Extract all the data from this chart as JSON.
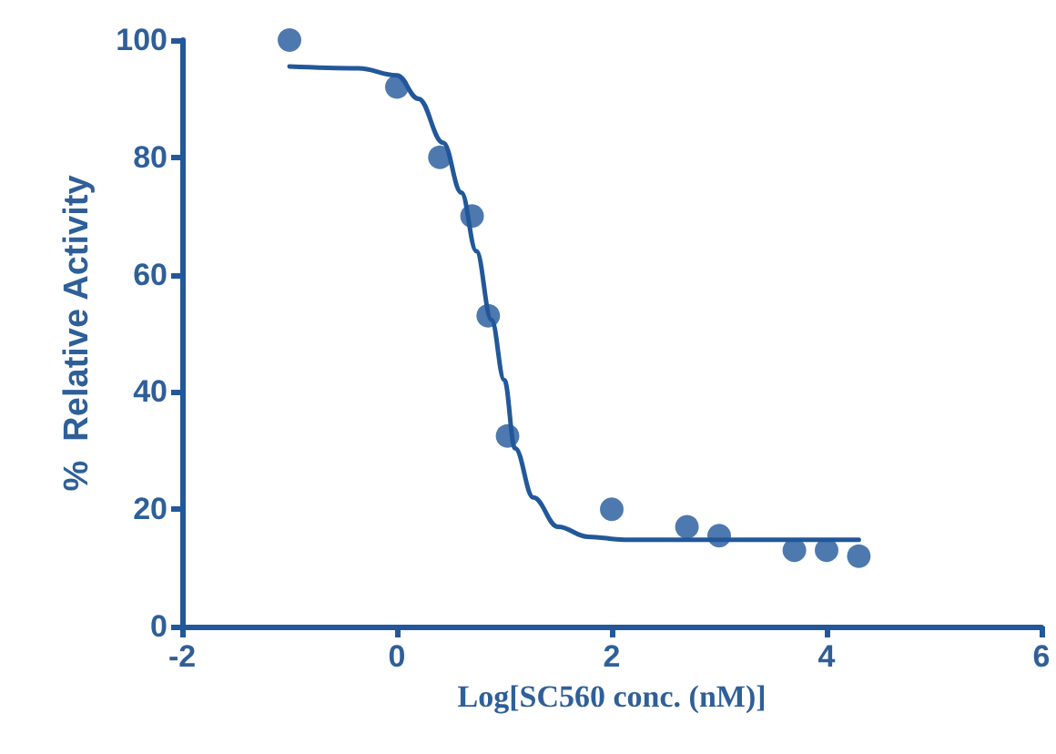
{
  "chart_data": {
    "type": "scatter",
    "xlabel": "Log[SC560 conc. (nM)]",
    "ylabel": "%  Relative Activity",
    "xlim": [
      -2,
      6
    ],
    "xticks": [
      -2,
      0,
      2,
      4,
      6
    ],
    "ylim": [
      0,
      100
    ],
    "yticks": [
      0,
      20,
      40,
      60,
      80,
      100
    ],
    "grid": false,
    "marker": "circle",
    "series": [
      {
        "color": "#22589a",
        "x": [
          -1,
          0,
          0.4,
          0.7,
          0.85,
          1.03,
          2,
          2.7,
          3,
          3.7,
          4,
          4.3
        ],
        "values": [
          100,
          92,
          80,
          70,
          53,
          32.5,
          20,
          17,
          15.5,
          13,
          13,
          12
        ]
      },
      {
        "type": "line",
        "color": "#22589a",
        "marker": "none",
        "line_style": "solid",
        "x": [
          -1,
          -0.36,
          0,
          0.2,
          0.43,
          0.6,
          0.74,
          0.88,
          1,
          1.1,
          1.27,
          1.5,
          1.78,
          2.12,
          4.3
        ],
        "values": [
          95.5,
          95.2,
          94,
          90,
          82.5,
          74,
          64,
          52.3,
          42,
          30.4,
          22,
          17,
          15.3,
          14.8,
          14.8
        ]
      }
    ]
  }
}
